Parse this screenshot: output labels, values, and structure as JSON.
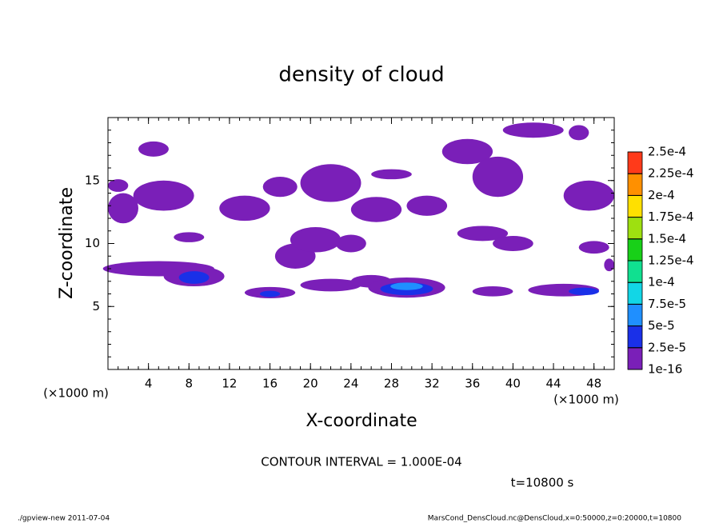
{
  "chart_data": {
    "type": "contour",
    "title": "density of cloud",
    "x_label": "X-coordinate",
    "y_label": "Z-coordinate",
    "x_unit": "(×1000 m)",
    "y_unit": "(×1000 m)",
    "xlim": [
      0,
      50
    ],
    "xticks": [
      4,
      8,
      12,
      16,
      20,
      24,
      28,
      32,
      36,
      40,
      44,
      48
    ],
    "ylim": [
      0,
      20
    ],
    "yticks": [
      5,
      10,
      15
    ],
    "levels": [
      {
        "value": 1e-16,
        "label": "1e-16"
      },
      {
        "value": 2.5e-05,
        "label": "2.5e-5"
      },
      {
        "value": 5e-05,
        "label": "5e-5"
      },
      {
        "value": 7.5e-05,
        "label": "7.5e-5"
      },
      {
        "value": 0.0001,
        "label": "1e-4"
      },
      {
        "value": 0.000125,
        "label": "1.25e-4"
      },
      {
        "value": 0.00015,
        "label": "1.5e-4"
      },
      {
        "value": 0.000175,
        "label": "1.75e-4"
      },
      {
        "value": 0.0002,
        "label": "2e-4"
      },
      {
        "value": 0.000225,
        "label": "2.25e-4"
      },
      {
        "value": 0.00025,
        "label": "2.5e-4"
      }
    ],
    "level_colors": [
      "#7a1fb8",
      "#1a30e8",
      "#1f8fff",
      "#12d6e6",
      "#10e090",
      "#18d018",
      "#9ee010",
      "#ffe000",
      "#ff9000",
      "#ff3a1a",
      "#ff9090"
    ],
    "cells": [
      {
        "x": 4.5,
        "z": 17.5,
        "rx": 1.5,
        "rz": 0.6,
        "value": 1e-05
      },
      {
        "x": 5.5,
        "z": 13.8,
        "rx": 3,
        "rz": 1.2,
        "value": 1e-05
      },
      {
        "x": 1.5,
        "z": 12.8,
        "rx": 1.5,
        "rz": 1.2,
        "value": 1e-05
      },
      {
        "x": 1,
        "z": 14.6,
        "rx": 1,
        "rz": 0.5,
        "value": 1e-05
      },
      {
        "x": 5,
        "z": 8,
        "rx": 5.5,
        "rz": 0.6,
        "value": 1e-05
      },
      {
        "x": 8.5,
        "z": 7.4,
        "rx": 3,
        "rz": 0.8,
        "value": 1e-05
      },
      {
        "x": 8.5,
        "z": 7.3,
        "rx": 1.5,
        "rz": 0.5,
        "value": 3e-05
      },
      {
        "x": 8,
        "z": 10.5,
        "rx": 1.5,
        "rz": 0.4,
        "value": 1e-05
      },
      {
        "x": 13.5,
        "z": 12.8,
        "rx": 2.5,
        "rz": 1,
        "value": 1e-05
      },
      {
        "x": 17,
        "z": 14.5,
        "rx": 1.7,
        "rz": 0.8,
        "value": 1e-05
      },
      {
        "x": 16,
        "z": 6.1,
        "rx": 2.5,
        "rz": 0.45,
        "value": 1e-05
      },
      {
        "x": 16,
        "z": 6,
        "rx": 1,
        "rz": 0.25,
        "value": 3e-05
      },
      {
        "x": 18.5,
        "z": 9,
        "rx": 2,
        "rz": 1,
        "value": 1e-05
      },
      {
        "x": 20.5,
        "z": 10.3,
        "rx": 2.5,
        "rz": 1,
        "value": 1e-05
      },
      {
        "x": 22,
        "z": 14.8,
        "rx": 3,
        "rz": 1.5,
        "value": 1e-05
      },
      {
        "x": 24,
        "z": 10,
        "rx": 1.5,
        "rz": 0.7,
        "value": 1e-05
      },
      {
        "x": 22,
        "z": 6.7,
        "rx": 3,
        "rz": 0.5,
        "value": 1e-05
      },
      {
        "x": 26,
        "z": 7,
        "rx": 2,
        "rz": 0.5,
        "value": 1e-05
      },
      {
        "x": 29.5,
        "z": 6.5,
        "rx": 3.8,
        "rz": 0.8,
        "value": 1e-05
      },
      {
        "x": 29.5,
        "z": 6.4,
        "rx": 2.6,
        "rz": 0.5,
        "value": 3e-05
      },
      {
        "x": 29.5,
        "z": 6.6,
        "rx": 1.6,
        "rz": 0.3,
        "value": 6e-05
      },
      {
        "x": 26.5,
        "z": 12.7,
        "rx": 2.5,
        "rz": 1,
        "value": 1e-05
      },
      {
        "x": 28,
        "z": 15.5,
        "rx": 2,
        "rz": 0.4,
        "value": 1e-05
      },
      {
        "x": 31.5,
        "z": 13,
        "rx": 2,
        "rz": 0.8,
        "value": 1e-05
      },
      {
        "x": 35.5,
        "z": 17.3,
        "rx": 2.5,
        "rz": 1,
        "value": 1e-05
      },
      {
        "x": 38.5,
        "z": 15.3,
        "rx": 2.5,
        "rz": 1.6,
        "value": 1e-05
      },
      {
        "x": 37,
        "z": 10.8,
        "rx": 2.5,
        "rz": 0.6,
        "value": 1e-05
      },
      {
        "x": 40,
        "z": 10,
        "rx": 2,
        "rz": 0.6,
        "value": 1e-05
      },
      {
        "x": 42,
        "z": 19,
        "rx": 3,
        "rz": 0.6,
        "value": 1e-05
      },
      {
        "x": 46.5,
        "z": 18.8,
        "rx": 1,
        "rz": 0.6,
        "value": 1e-05
      },
      {
        "x": 47.5,
        "z": 13.8,
        "rx": 2.5,
        "rz": 1.2,
        "value": 1e-05
      },
      {
        "x": 45,
        "z": 6.3,
        "rx": 3.5,
        "rz": 0.5,
        "value": 1e-05
      },
      {
        "x": 47,
        "z": 6.2,
        "rx": 1.5,
        "rz": 0.3,
        "value": 3e-05
      },
      {
        "x": 38,
        "z": 6.2,
        "rx": 2,
        "rz": 0.4,
        "value": 1e-05
      },
      {
        "x": 48,
        "z": 9.7,
        "rx": 1.5,
        "rz": 0.5,
        "value": 1e-05
      },
      {
        "x": 49.5,
        "z": 8.3,
        "rx": 0.5,
        "rz": 0.5,
        "value": 1e-05
      }
    ],
    "contour_interval": "CONTOUR INTERVAL = 1.000E-04",
    "time_label": "t=10800 s",
    "footer_left": "./gpview-new  2011-07-04",
    "footer_right": "MarsCond_DensCloud.nc@DensCloud,x=0:50000,z=0:20000,t=10800"
  }
}
